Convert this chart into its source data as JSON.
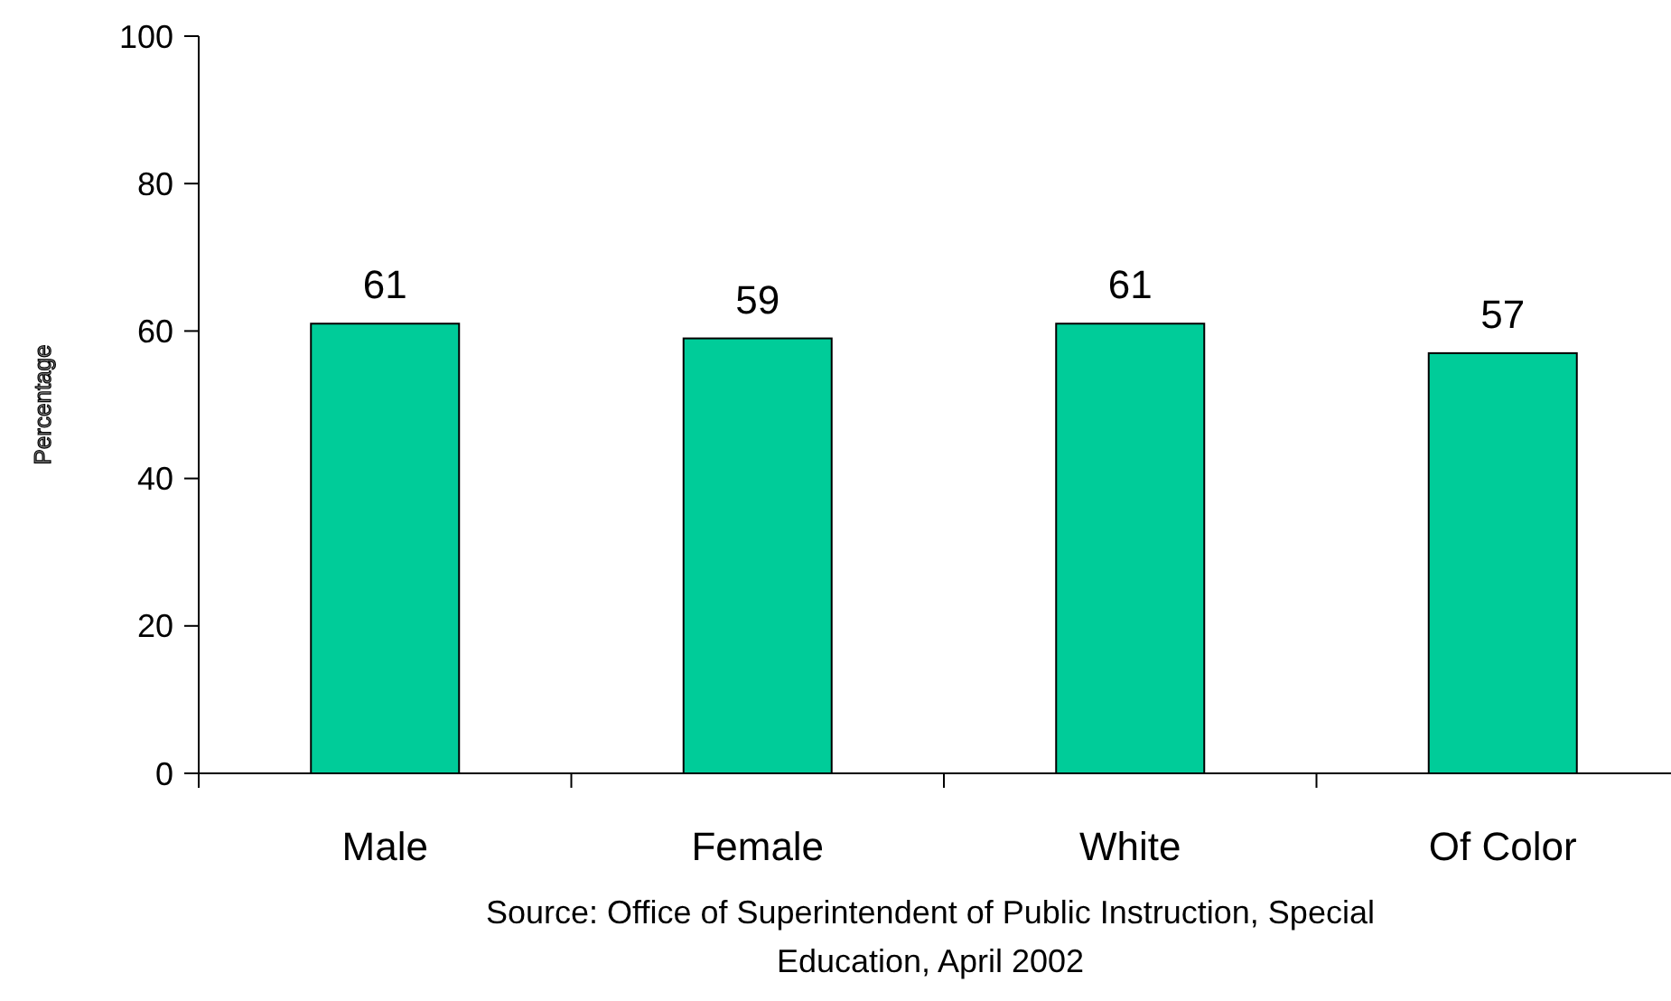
{
  "chart_data": {
    "type": "bar",
    "ylabel": "Percentage",
    "categories": [
      "Male",
      "Female",
      "White",
      "Of Color"
    ],
    "values": [
      61,
      59,
      61,
      57
    ],
    "color": "#00cc99",
    "ylim": [
      0,
      100
    ],
    "yticks": [
      0,
      20,
      40,
      60,
      80,
      100
    ],
    "data_labels": true,
    "grid": false,
    "annotations": [
      "Source: Office of Superintendent of Public Instruction, Special Education,  April 2002"
    ]
  }
}
